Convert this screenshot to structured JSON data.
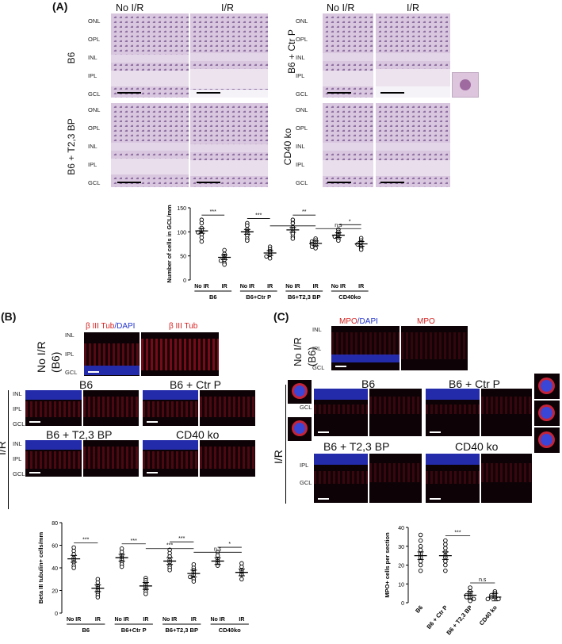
{
  "panelA": {
    "label": "(A)",
    "col_no_ir": "No I/R",
    "col_ir": "I/R",
    "rows": {
      "b6": "B6",
      "ctr": "B6 + Ctr P",
      "t23": "B6 + T2,3 BP",
      "cd40": "CD40 ko"
    },
    "layers": [
      "ONL",
      "OPL",
      "INL",
      "IPL",
      "GCL"
    ],
    "chart_data": {
      "type": "scatter",
      "ylabel": "Number of cells in GCL/mm",
      "ylim": [
        0,
        150
      ],
      "yticks": [
        0,
        50,
        100,
        150
      ],
      "x_labels": [
        "No IR",
        "IR",
        "No IR",
        "IR",
        "No IR",
        "IR",
        "No IR",
        "IR"
      ],
      "groups": [
        "B6",
        "B6+Ctr P",
        "B6+T2,3 BP",
        "CD40ko"
      ],
      "means": [
        102,
        47,
        100,
        56,
        104,
        76,
        93,
        75
      ],
      "points": [
        [
          125,
          118,
          108,
          103,
          99,
          95,
          88,
          80
        ],
        [
          62,
          54,
          50,
          46,
          42,
          40,
          35,
          32
        ],
        [
          118,
          113,
          105,
          100,
          96,
          92,
          86,
          82
        ],
        [
          69,
          64,
          60,
          57,
          52,
          49,
          45
        ],
        [
          125,
          118,
          110,
          106,
          100,
          96,
          90,
          86
        ],
        [
          86,
          82,
          80,
          78,
          75,
          72,
          69,
          66
        ],
        [
          105,
          100,
          96,
          93,
          90,
          86,
          82
        ],
        [
          87,
          82,
          78,
          74,
          70,
          66,
          63
        ]
      ],
      "sig": [
        {
          "a": 0,
          "b": 1,
          "label": "***"
        },
        {
          "a": 2,
          "b": 3,
          "label": "***"
        },
        {
          "a": 3,
          "b": 5,
          "label": "**"
        },
        {
          "a": 5,
          "b": 7,
          "label": "n.s"
        },
        {
          "a": 4,
          "b": 5,
          "label": "**"
        },
        {
          "a": 6,
          "b": 7,
          "label": "*"
        }
      ]
    }
  },
  "panelB": {
    "label": "(B)",
    "legend_red": "β III Tub",
    "legend_blue": "/DAPI",
    "legend_red2": "β III Tub",
    "row_noir": "No I/R",
    "row_noir2": "(B6)",
    "ir_label": "I/R",
    "titles": {
      "b6": "B6",
      "ctr": "B6 + Ctr P",
      "t23": "B6 + T2,3 BP",
      "cd40": "CD40 ko"
    },
    "layers": [
      "INL",
      "IPL",
      "GCL"
    ],
    "chart_data": {
      "type": "scatter",
      "ylabel": "Beta III tubulin+ cells/mm",
      "ylim": [
        0,
        80
      ],
      "yticks": [
        0,
        20,
        40,
        60,
        80
      ],
      "x_labels": [
        "No IR",
        "IR",
        "No IR",
        "IR",
        "No IR",
        "IR",
        "No IR",
        "IR"
      ],
      "groups": [
        "B6",
        "B6+Ctr P",
        "B6+T2,3 BP",
        "CD40ko"
      ],
      "means": [
        48,
        22,
        49,
        24,
        46,
        35,
        46,
        36
      ],
      "points": [
        [
          58,
          55,
          52,
          49,
          47,
          45,
          42,
          40
        ],
        [
          30,
          27,
          24,
          22,
          20,
          18,
          16,
          14
        ],
        [
          57,
          54,
          51,
          49,
          47,
          45,
          43,
          41
        ],
        [
          31,
          29,
          27,
          25,
          23,
          21,
          19,
          17
        ],
        [
          56,
          53,
          50,
          47,
          45,
          42,
          40,
          38
        ],
        [
          43,
          40,
          38,
          36,
          34,
          32,
          30,
          28
        ],
        [
          54,
          51,
          48,
          46,
          44,
          42
        ],
        [
          44,
          41,
          38,
          36,
          34,
          30
        ]
      ],
      "sig": [
        {
          "a": 0,
          "b": 1,
          "label": "***"
        },
        {
          "a": 2,
          "b": 3,
          "label": "***"
        },
        {
          "a": 3,
          "b": 5,
          "label": "***"
        },
        {
          "a": 4,
          "b": 5,
          "label": "***"
        },
        {
          "a": 5,
          "b": 7,
          "label": "n.s"
        },
        {
          "a": 6,
          "b": 7,
          "label": "*"
        }
      ]
    }
  },
  "panelC": {
    "label": "(C)",
    "legend_red": "MPO",
    "legend_blue": "/DAPI",
    "legend_red2": "MPO",
    "row_noir": "No I/R",
    "row_noir2": "(B6)",
    "ir_label": "I/R",
    "titles": {
      "b6": "B6",
      "ctr": "B6 + Ctr P",
      "t23": "B6 + T2,3 BP",
      "cd40": "CD40 ko"
    },
    "layers_top": [
      "INL",
      "IPL",
      "GCL"
    ],
    "layers_b6": [
      "GCL"
    ],
    "layers_bot": [
      "IPL",
      "GCL"
    ],
    "chart_data": {
      "type": "scatter",
      "ylabel": "MPO+ cells per section",
      "ylim": [
        0,
        40
      ],
      "yticks": [
        0,
        10,
        20,
        30,
        40
      ],
      "x_labels": [
        "B6",
        "B6 + Ctr P",
        "B6 + T2,3 BP",
        "CD40 ko"
      ],
      "means": [
        25,
        25,
        4,
        3
      ],
      "points": [
        [
          36,
          33,
          30,
          28,
          26,
          24,
          22,
          20,
          17
        ],
        [
          33,
          31,
          29,
          27,
          25,
          24,
          22,
          20,
          17
        ],
        [
          8,
          6,
          5,
          4,
          4,
          3,
          3,
          2,
          1
        ],
        [
          6,
          5,
          4,
          4,
          3,
          3,
          2,
          2
        ]
      ],
      "sig": [
        {
          "a": 1,
          "b": 2,
          "label": "***"
        },
        {
          "a": 2,
          "b": 3,
          "label": "n.s"
        }
      ]
    }
  }
}
